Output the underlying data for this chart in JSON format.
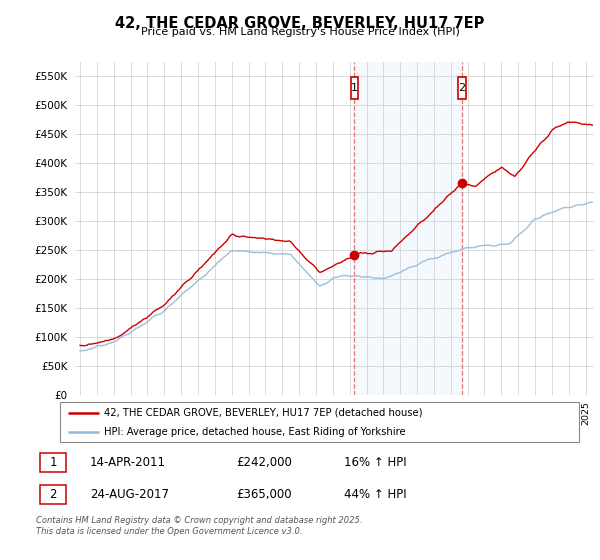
{
  "title": "42, THE CEDAR GROVE, BEVERLEY, HU17 7EP",
  "subtitle": "Price paid vs. HM Land Registry's House Price Index (HPI)",
  "ylim": [
    0,
    575000
  ],
  "yticks": [
    0,
    50000,
    100000,
    150000,
    200000,
    250000,
    300000,
    350000,
    400000,
    450000,
    500000,
    550000
  ],
  "xlim_start": 1994.7,
  "xlim_end": 2025.5,
  "transaction1_x": 2011.28,
  "transaction1_y": 242000,
  "transaction1_label": "1",
  "transaction1_date": "14-APR-2011",
  "transaction1_price": "£242,000",
  "transaction1_hpi": "16% ↑ HPI",
  "transaction2_x": 2017.65,
  "transaction2_y": 365000,
  "transaction2_label": "2",
  "transaction2_date": "24-AUG-2017",
  "transaction2_price": "£365,000",
  "transaction2_hpi": "44% ↑ HPI",
  "shade_start": 2011.28,
  "shade_end": 2017.65,
  "red_line_color": "#cc0000",
  "blue_line_color": "#91b8d9",
  "shade_color": "#ddeeff",
  "grid_color": "#cccccc",
  "bg_color": "#ffffff",
  "legend_line1": "42, THE CEDAR GROVE, BEVERLEY, HU17 7EP (detached house)",
  "legend_line2": "HPI: Average price, detached house, East Riding of Yorkshire",
  "footer": "Contains HM Land Registry data © Crown copyright and database right 2025.\nThis data is licensed under the Open Government Licence v3.0."
}
